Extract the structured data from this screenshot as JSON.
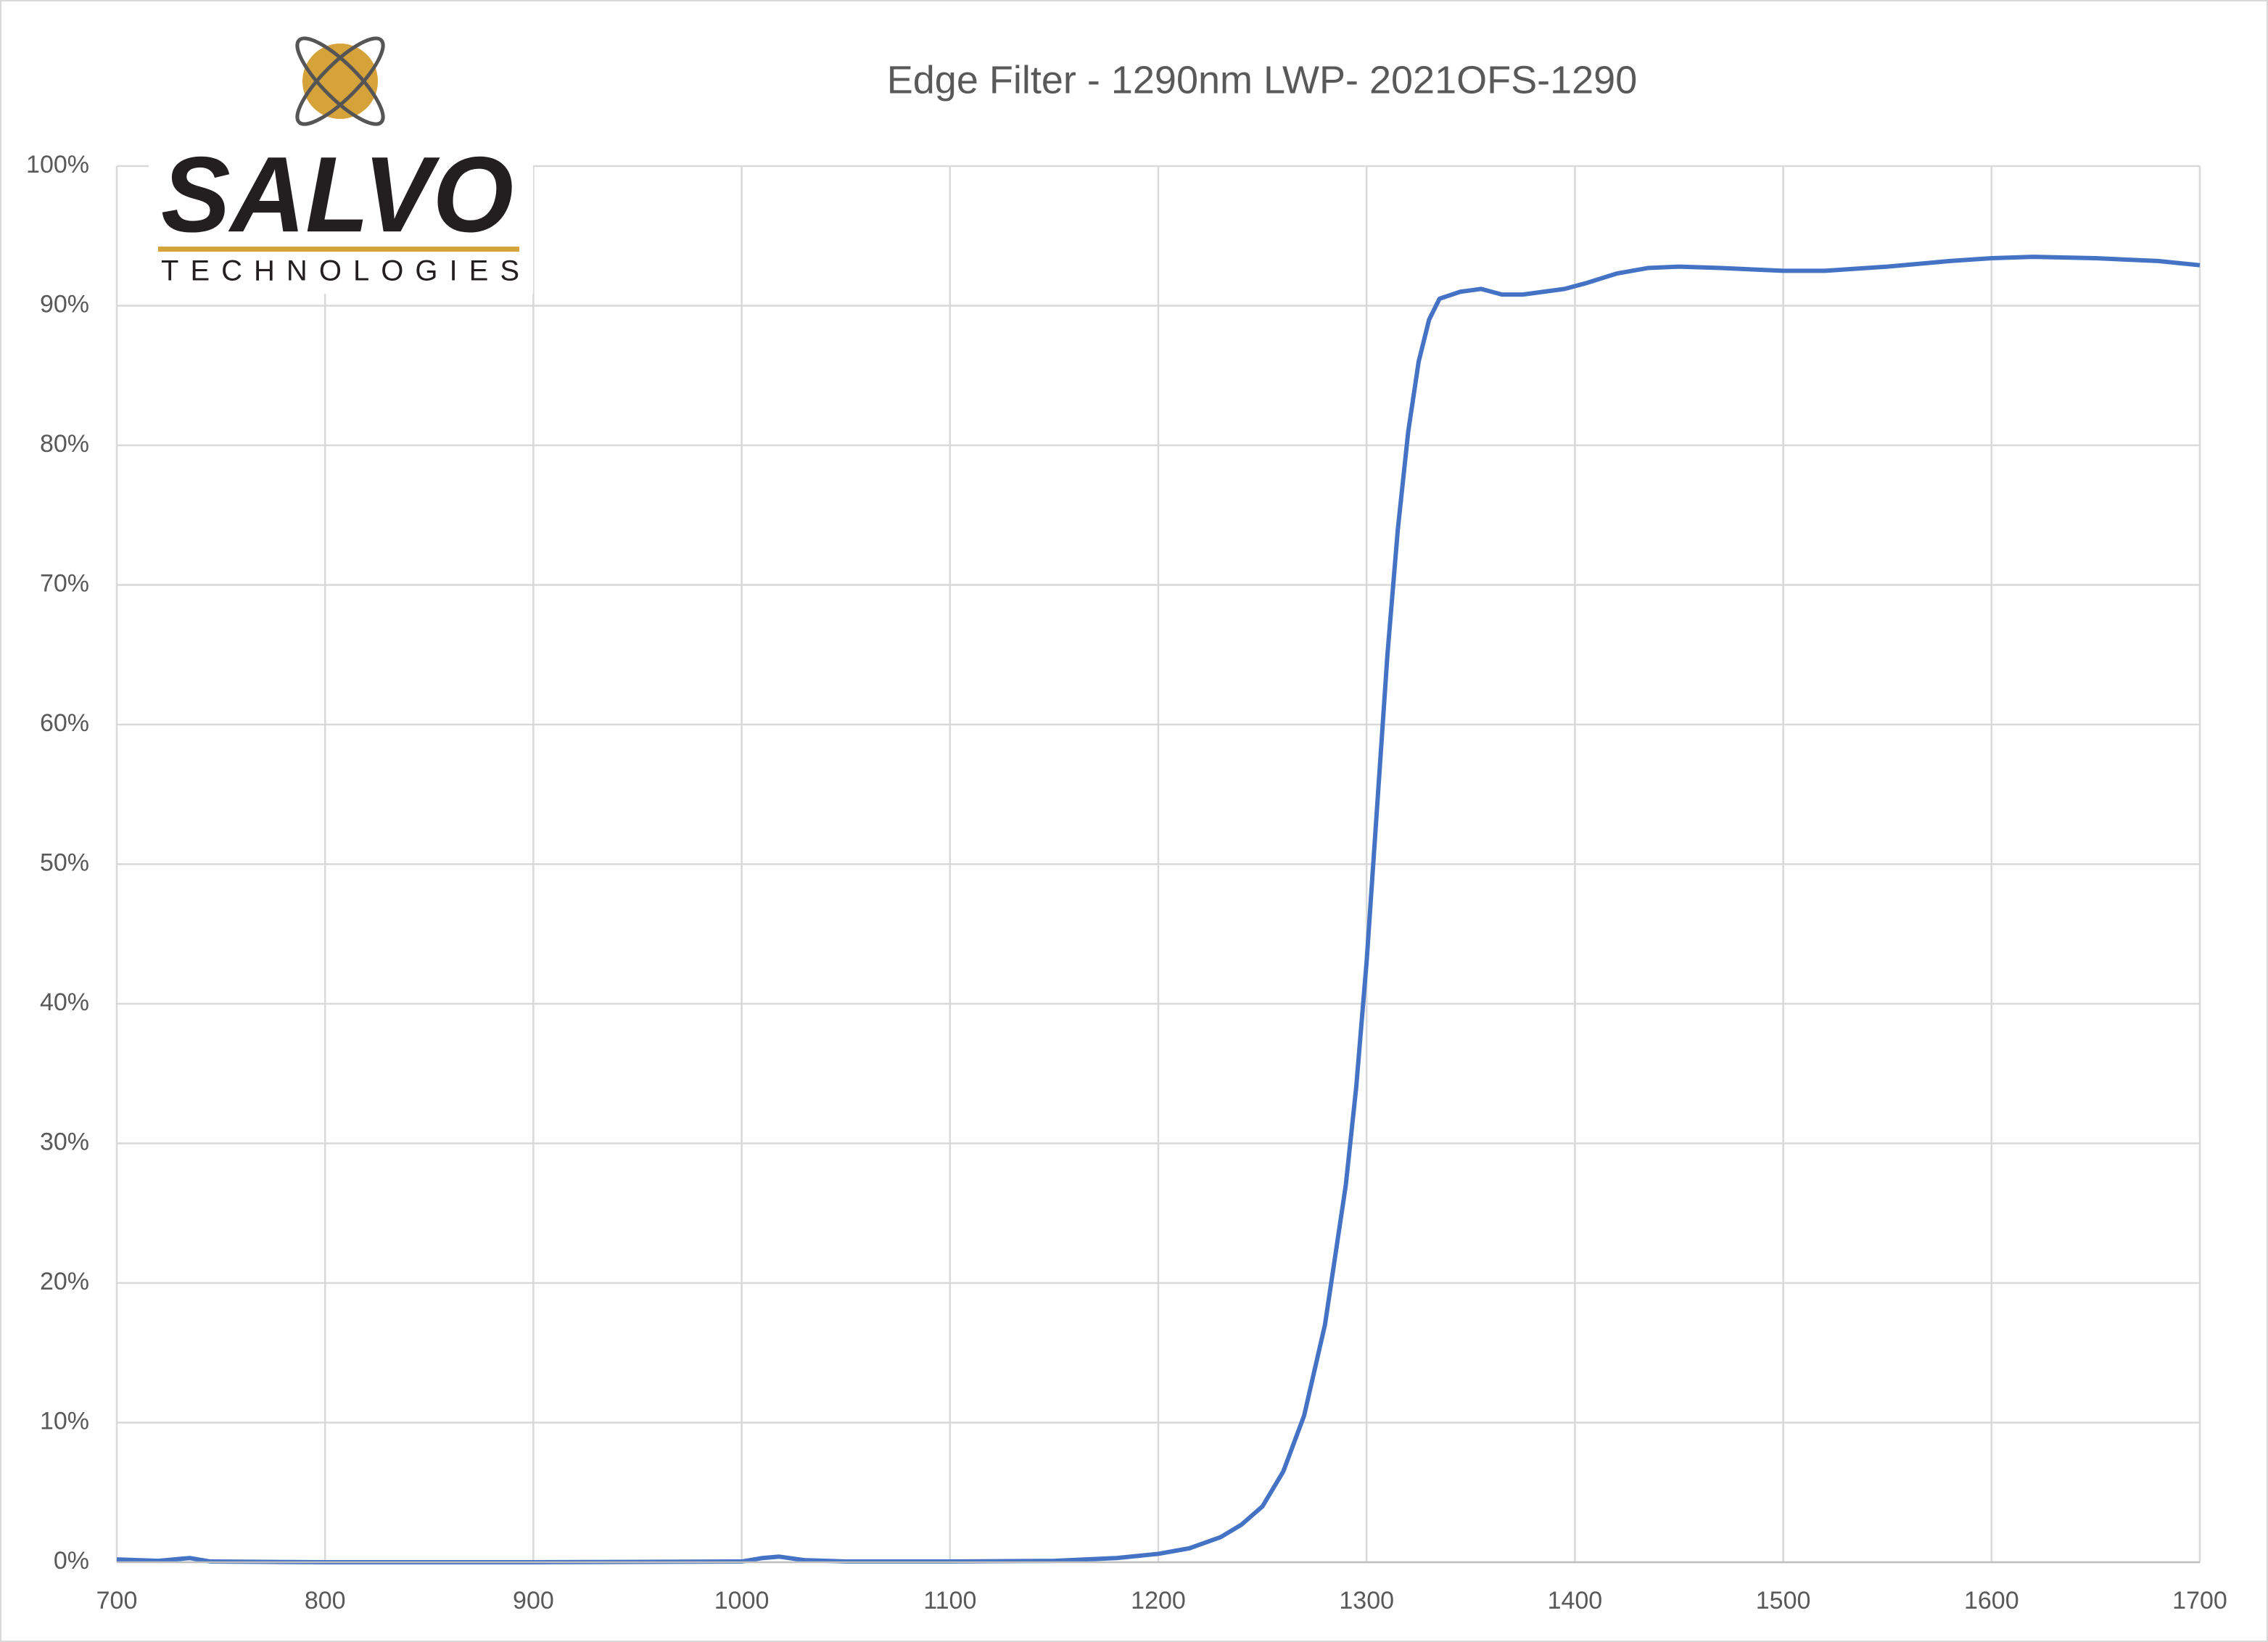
{
  "chart_data": {
    "type": "line",
    "title": "Edge Filter - 1290nm LWP- 2021OFS-1290",
    "logo_title": "SALVO",
    "logo_subtitle": "TECHNOLOGIES",
    "x": [
      700,
      720,
      735,
      745,
      800,
      900,
      1000,
      1010,
      1018,
      1030,
      1050,
      1100,
      1150,
      1180,
      1200,
      1215,
      1230,
      1240,
      1250,
      1260,
      1270,
      1280,
      1290,
      1295,
      1300,
      1305,
      1310,
      1315,
      1320,
      1325,
      1330,
      1335,
      1345,
      1355,
      1365,
      1375,
      1385,
      1395,
      1405,
      1420,
      1435,
      1450,
      1470,
      1500,
      1520,
      1550,
      1580,
      1600,
      1620,
      1650,
      1680,
      1700
    ],
    "series": [
      {
        "color": "#4472c4",
        "values": [
          0.2,
          0.1,
          0.3,
          0.05,
          0,
          0,
          0.05,
          0.3,
          0.4,
          0.15,
          0.05,
          0.05,
          0.1,
          0.3,
          0.6,
          1.0,
          1.8,
          2.7,
          4.0,
          6.5,
          10.5,
          17,
          27,
          34,
          43,
          54,
          65,
          74,
          81,
          86,
          89,
          90.5,
          91.0,
          91.2,
          90.8,
          90.8,
          91.0,
          91.2,
          91.6,
          92.3,
          92.7,
          92.8,
          92.7,
          92.5,
          92.5,
          92.8,
          93.2,
          93.4,
          93.5,
          93.4,
          93.2,
          92.9
        ]
      }
    ],
    "xlim": [
      700,
      1700
    ],
    "xticks": [
      700,
      800,
      900,
      1000,
      1100,
      1200,
      1300,
      1400,
      1500,
      1600,
      1700
    ],
    "ylim": [
      0,
      100
    ],
    "yticks": [
      {
        "value": 0,
        "label": "0%"
      },
      {
        "value": 10,
        "label": "10%"
      },
      {
        "value": 20,
        "label": "20%"
      },
      {
        "value": 30,
        "label": "30%"
      },
      {
        "value": 40,
        "label": "40%"
      },
      {
        "value": 50,
        "label": "50%"
      },
      {
        "value": 60,
        "label": "60%"
      },
      {
        "value": 70,
        "label": "70%"
      },
      {
        "value": 80,
        "label": "80%"
      },
      {
        "value": 90,
        "label": "90%"
      },
      {
        "value": 100,
        "label": "100%"
      }
    ],
    "grid": true
  }
}
